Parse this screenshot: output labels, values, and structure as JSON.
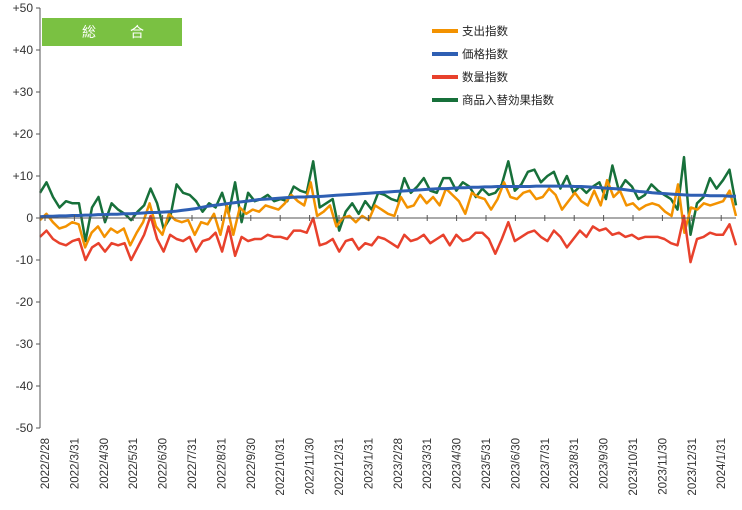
{
  "chart_data": {
    "type": "line",
    "title": "総　合",
    "title_bg": "#7ac142",
    "ylim": [
      -50,
      50
    ],
    "yticks": [
      50,
      40,
      30,
      20,
      10,
      0,
      -10,
      -20,
      -30,
      -40,
      -50
    ],
    "ytick_labels": [
      "+50",
      "+40",
      "+30",
      "+20",
      "+10",
      "0",
      "-10",
      "-20",
      "-30",
      "-40",
      "-50"
    ],
    "grid": false,
    "legend_position": "top-right",
    "x_tick_labels": [
      "2022/2/28",
      "2022/3/31",
      "2022/4/30",
      "2022/5/31",
      "2022/6/30",
      "2022/7/31",
      "2022/8/31",
      "2022/9/30",
      "2022/10/31",
      "2022/11/30",
      "2022/12/31",
      "2023/1/31",
      "2023/2/28",
      "2023/3/31",
      "2023/4/30",
      "2023/5/31",
      "2023/6/30",
      "2023/7/31",
      "2023/8/31",
      "2023/9/30",
      "2023/10/31",
      "2023/11/30",
      "2023/12/31",
      "2024/1/31"
    ],
    "series": [
      {
        "name": "支出指数",
        "color": "#f39200",
        "values": [
          -0.5,
          1,
          -1,
          -2.5,
          -2,
          -1,
          -1.5,
          -7,
          -3.5,
          -2,
          -4.5,
          -2.5,
          -3.5,
          -2.5,
          -6.5,
          -3.5,
          -1,
          3.5,
          -2,
          -4,
          1,
          -0.5,
          -1,
          -0.5,
          -4,
          -1,
          -1.5,
          1,
          -4,
          3,
          -4,
          2.5,
          1,
          2,
          1.5,
          3,
          2.5,
          2,
          3.5,
          5.5,
          4,
          3,
          8.5,
          0.5,
          1.5,
          3,
          -2,
          0,
          0.5,
          -1,
          0.5,
          -0.5,
          3,
          2,
          1,
          0.5,
          5,
          2.5,
          3,
          5.5,
          3.5,
          5,
          3,
          7,
          5.5,
          4,
          1,
          6,
          5,
          4.5,
          2,
          4.5,
          8.5,
          5,
          4.5,
          6,
          6.5,
          4.5,
          5,
          7,
          5.5,
          2,
          4,
          6,
          4,
          3,
          6.5,
          3,
          9,
          5,
          6.5,
          3,
          3.5,
          2,
          3,
          3.5,
          3,
          1.5,
          0.5,
          8,
          -3.5,
          2.5,
          2,
          3.5,
          3,
          3.5,
          4,
          6.5,
          0.5
        ]
      },
      {
        "name": "価格指数",
        "color": "#2e5fb3",
        "values": [
          0.3,
          0.4,
          0.4,
          0.5,
          0.5,
          0.6,
          0.6,
          0.7,
          0.7,
          0.8,
          0.8,
          0.9,
          0.9,
          1,
          1,
          1.1,
          1.2,
          1.3,
          1.3,
          1.4,
          1.5,
          1.6,
          1.8,
          2,
          2.2,
          2.5,
          2.8,
          3,
          3.2,
          3.4,
          3.6,
          3.8,
          4,
          4.2,
          4.4,
          4.5,
          4.6,
          4.7,
          4.8,
          4.9,
          5,
          5,
          5.1,
          5.1,
          5.2,
          5.3,
          5.4,
          5.5,
          5.6,
          5.7,
          5.8,
          5.9,
          6,
          6.1,
          6.2,
          6.3,
          6.4,
          6.5,
          6.6,
          6.7,
          6.8,
          6.9,
          7,
          7,
          7.1,
          7.2,
          7.2,
          7.3,
          7.3,
          7.4,
          7.4,
          7.5,
          7.5,
          7.5,
          7.5,
          7.5,
          7.5,
          7.6,
          7.6,
          7.6,
          7.6,
          7.6,
          7.6,
          7.5,
          7.5,
          7.4,
          7.3,
          7.2,
          7.1,
          7,
          6.9,
          6.7,
          6.5,
          6.3,
          6.2,
          6,
          5.9,
          5.8,
          5.7,
          5.6,
          5.5,
          5.4,
          5.4,
          5.4,
          5.3,
          5.3,
          5.3,
          5.2,
          5.2
        ]
      },
      {
        "name": "数量指数",
        "color": "#e8412c",
        "values": [
          -4.5,
          -3,
          -5,
          -6,
          -6.5,
          -5.5,
          -5,
          -10,
          -7,
          -6,
          -8,
          -6,
          -6.5,
          -6,
          -10,
          -7,
          -4,
          0.5,
          -5,
          -8,
          -4,
          -5,
          -5.5,
          -4.5,
          -8,
          -5.5,
          -5,
          -3.5,
          -8,
          -2,
          -9,
          -4.5,
          -5.5,
          -5,
          -5,
          -4,
          -4.5,
          -4.5,
          -5,
          -3,
          -3,
          -3.5,
          0,
          -6.5,
          -6,
          -5,
          -8,
          -5.5,
          -5,
          -7.5,
          -6,
          -6.5,
          -4.5,
          -5,
          -6,
          -7,
          -4,
          -5.5,
          -5,
          -4,
          -6,
          -5,
          -4,
          -6.5,
          -4,
          -5.5,
          -5,
          -3.5,
          -3.5,
          -5,
          -8.5,
          -5,
          -1,
          -5.5,
          -4.5,
          -3.5,
          -3,
          -4.5,
          -5.5,
          -3,
          -4.5,
          -7,
          -5,
          -3,
          -4.5,
          -2,
          -3,
          -2.5,
          -4,
          -3.5,
          -4.5,
          -4,
          -5,
          -4.5,
          -4.5,
          -4.5,
          -5,
          -6,
          -6.5,
          0.5,
          -10.5,
          -5,
          -4.5,
          -3.5,
          -4,
          -4,
          -1.5,
          -6.5
        ]
      },
      {
        "name": "商品入替効果指数",
        "color": "#17703a",
        "values": [
          6,
          8.5,
          5,
          2.5,
          4,
          3.5,
          3.5,
          -5.5,
          2.5,
          5,
          -1,
          3.5,
          2,
          1,
          -0.5,
          1.5,
          3,
          7,
          3.5,
          -2.5,
          0,
          8,
          6,
          5.5,
          4,
          1.5,
          3.5,
          2.5,
          6,
          1,
          8.5,
          -1,
          6,
          4,
          4.5,
          5.5,
          4,
          4.5,
          4,
          7.5,
          6.5,
          6,
          13.5,
          2.5,
          3.5,
          4.5,
          -3,
          1.5,
          3.5,
          1,
          4,
          2,
          6,
          5.5,
          4.5,
          4,
          9.5,
          6,
          7.5,
          9.5,
          6.5,
          6,
          9.5,
          9.5,
          6.5,
          8.5,
          7.5,
          5,
          7,
          5.5,
          6,
          8,
          13.5,
          6.5,
          8,
          11,
          11.5,
          8.5,
          10,
          11,
          7,
          10,
          6,
          7.5,
          6,
          7.5,
          8.5,
          4.5,
          12.5,
          6.5,
          9,
          7.5,
          4.5,
          5.5,
          8,
          6.5,
          5.5,
          4.5,
          2,
          14.5,
          -4,
          3.5,
          5,
          9.5,
          7,
          9,
          11.5,
          3
        ]
      }
    ]
  }
}
